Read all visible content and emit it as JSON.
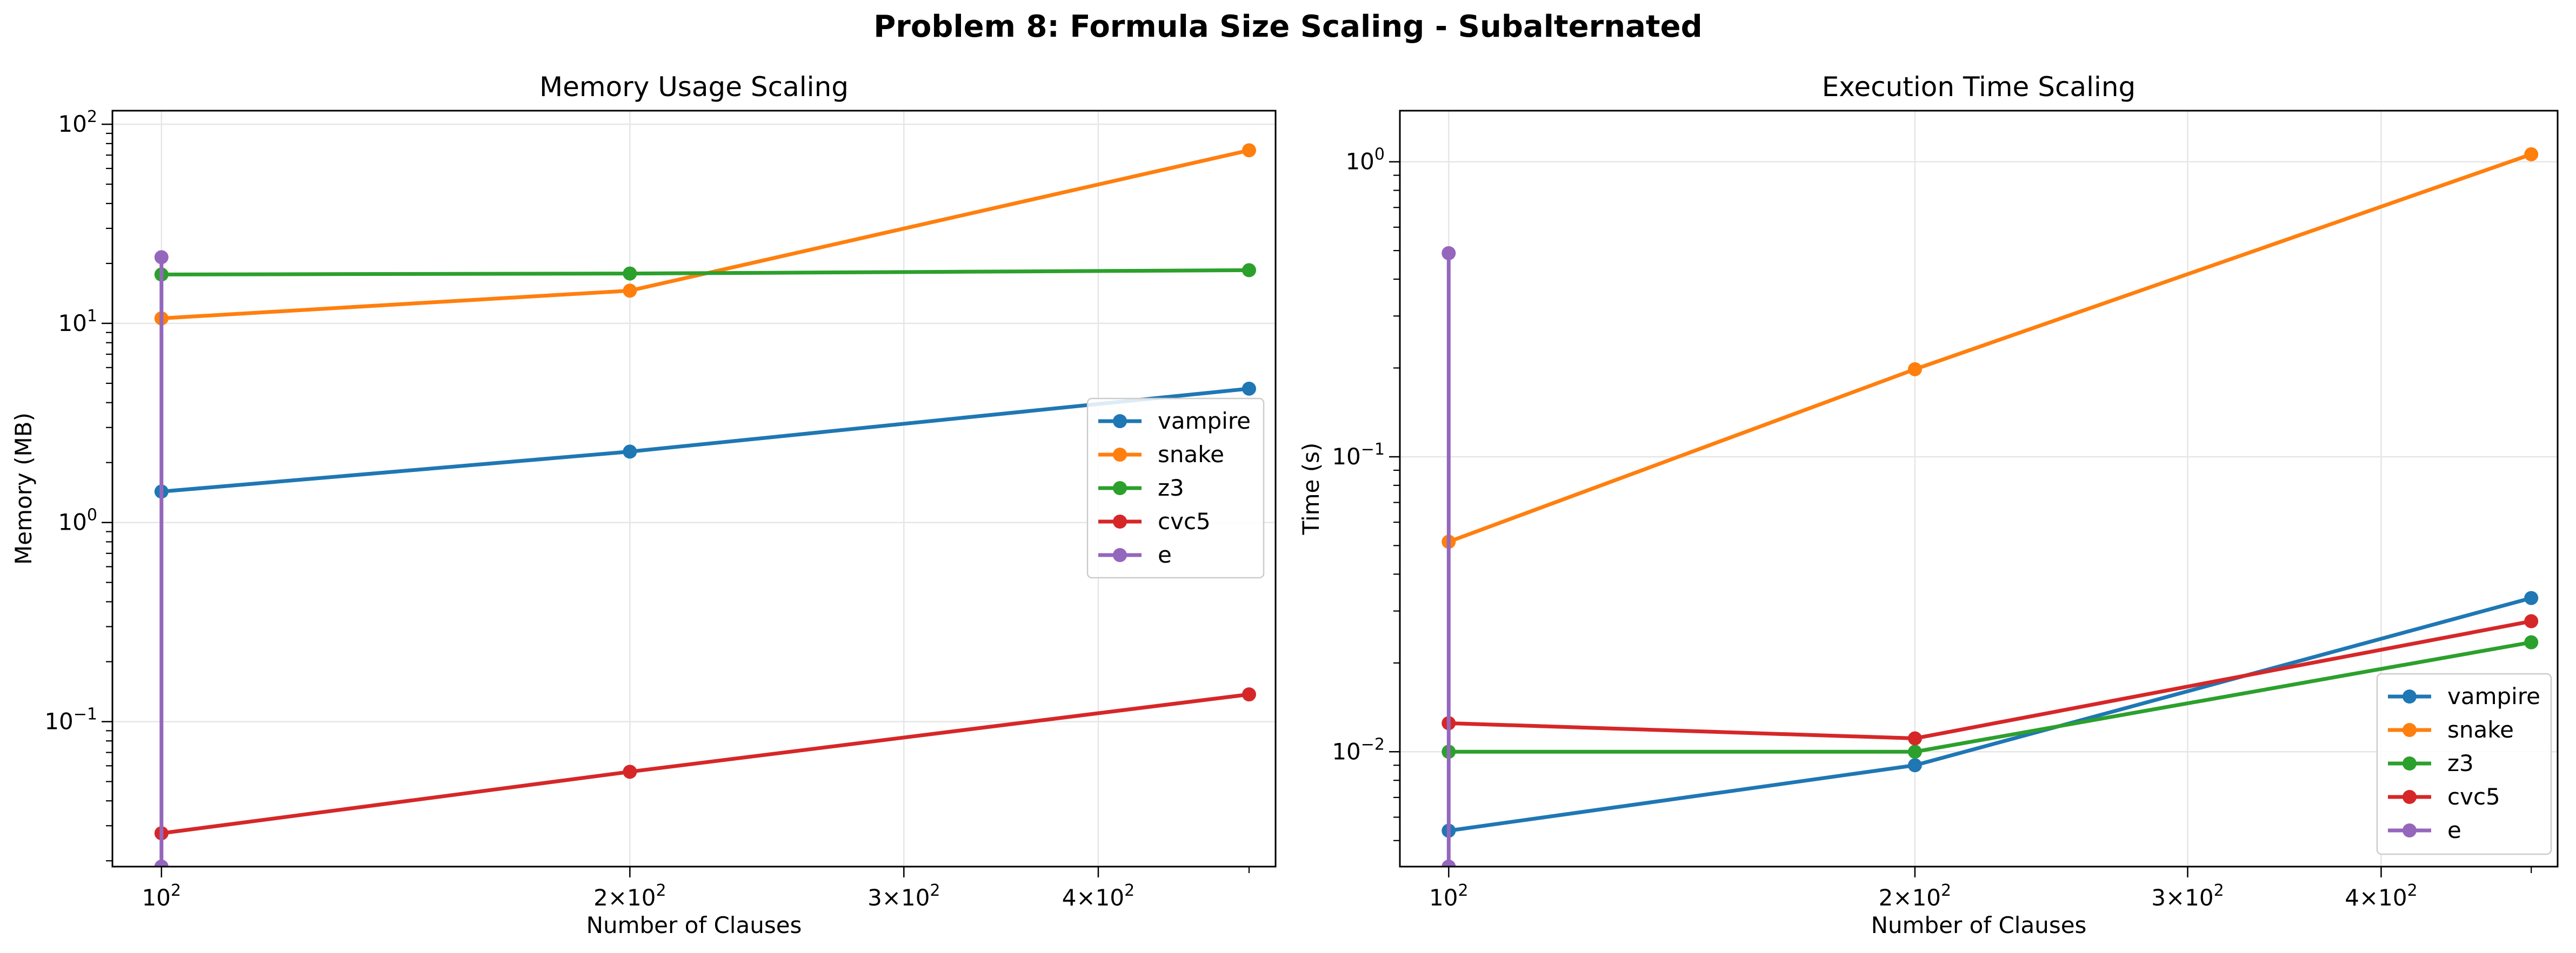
{
  "figure": {
    "suptitle": "Problem 8: Formula Size Scaling - Subalternated"
  },
  "chart_data": [
    {
      "type": "line",
      "title": "Memory Usage Scaling",
      "xlabel": "Number of Clauses",
      "ylabel": "Memory (MB)",
      "xscale": "log",
      "yscale": "log",
      "xlim": [
        93,
        520
      ],
      "ylim": [
        0.0187,
        117
      ],
      "grid": true,
      "legend_position": "center-right",
      "x_ticks": [
        {
          "value": 100,
          "base": "10",
          "exp": "2"
        },
        {
          "value": 200,
          "base": "2×10",
          "exp": "2"
        },
        {
          "value": 300,
          "base": "3×10",
          "exp": "2"
        },
        {
          "value": 400,
          "base": "4×10",
          "exp": "2"
        }
      ],
      "y_ticks": [
        {
          "value": 0.1,
          "base": "10",
          "exp": "−1"
        },
        {
          "value": 1,
          "base": "10",
          "exp": "0"
        },
        {
          "value": 10,
          "base": "10",
          "exp": "1"
        },
        {
          "value": 100,
          "base": "10",
          "exp": "2"
        }
      ],
      "series": [
        {
          "name": "vampire",
          "color": "#1f77b4",
          "x": [
            100,
            200,
            500
          ],
          "y": [
            1.43,
            2.27,
            4.7
          ]
        },
        {
          "name": "snake",
          "color": "#ff7f0e",
          "x": [
            100,
            200,
            500
          ],
          "y": [
            10.6,
            14.6,
            74
          ]
        },
        {
          "name": "z3",
          "color": "#2ca02c",
          "x": [
            100,
            200,
            500
          ],
          "y": [
            17.6,
            17.8,
            18.5
          ]
        },
        {
          "name": "cvc5",
          "color": "#d62728",
          "x": [
            100,
            200,
            500
          ],
          "y": [
            0.0275,
            0.056,
            0.137
          ]
        },
        {
          "name": "e",
          "color": "#9467bd",
          "x": [
            100,
            100
          ],
          "y": [
            21.5,
            0.0187
          ]
        }
      ]
    },
    {
      "type": "line",
      "title": "Execution Time Scaling",
      "xlabel": "Number of Clauses",
      "ylabel": "Time (s)",
      "xscale": "log",
      "yscale": "log",
      "xlim": [
        93,
        520
      ],
      "ylim": [
        0.00408,
        1.49
      ],
      "grid": true,
      "legend_position": "lower-right",
      "x_ticks": [
        {
          "value": 100,
          "base": "10",
          "exp": "2"
        },
        {
          "value": 200,
          "base": "2×10",
          "exp": "2"
        },
        {
          "value": 300,
          "base": "3×10",
          "exp": "2"
        },
        {
          "value": 400,
          "base": "4×10",
          "exp": "2"
        }
      ],
      "y_ticks": [
        {
          "value": 0.01,
          "base": "10",
          "exp": "−2"
        },
        {
          "value": 0.1,
          "base": "10",
          "exp": "−1"
        },
        {
          "value": 1,
          "base": "10",
          "exp": "0"
        }
      ],
      "series": [
        {
          "name": "vampire",
          "color": "#1f77b4",
          "x": [
            100,
            200,
            500
          ],
          "y": [
            0.0054,
            0.009,
            0.0332
          ]
        },
        {
          "name": "snake",
          "color": "#ff7f0e",
          "x": [
            100,
            200,
            500
          ],
          "y": [
            0.0515,
            0.198,
            1.06
          ]
        },
        {
          "name": "z3",
          "color": "#2ca02c",
          "x": [
            100,
            200,
            500
          ],
          "y": [
            0.01,
            0.01,
            0.0235
          ]
        },
        {
          "name": "cvc5",
          "color": "#d62728",
          "x": [
            100,
            200,
            500
          ],
          "y": [
            0.0125,
            0.0111,
            0.0277
          ]
        },
        {
          "name": "e",
          "color": "#9467bd",
          "x": [
            100,
            100
          ],
          "y": [
            0.49,
            0.00408
          ]
        }
      ]
    }
  ]
}
